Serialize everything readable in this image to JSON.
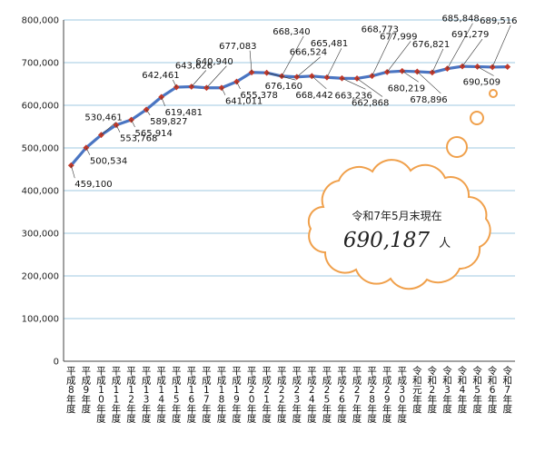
{
  "chart_data": {
    "type": "line",
    "title": "",
    "xlabel": "",
    "ylabel": "",
    "ylim": [
      0,
      800000
    ],
    "yticks": [
      "0",
      "100,000",
      "200,000",
      "300,000",
      "400,000",
      "500,000",
      "600,000",
      "700,000",
      "800,000"
    ],
    "grid": true,
    "categories": [
      "平成8年度",
      "平成9年度",
      "平成10年度",
      "平成11年度",
      "平成12年度",
      "平成13年度",
      "平成14年度",
      "平成15年度",
      "平成16年度",
      "平成17年度",
      "平成18年度",
      "平成19年度",
      "平成20年度",
      "平成21年度",
      "平成22年度",
      "平成23年度",
      "平成24年度",
      "平成25年度",
      "平成26年度",
      "平成27年度",
      "平成28年度",
      "平成29年度",
      "平成30年度",
      "令和元年度",
      "令和2年度",
      "令和3年度",
      "令和4年度",
      "令和5年度",
      "令和6年度",
      "令和7年度"
    ],
    "series": [
      {
        "values": [
          459100,
          500534,
          530461,
          553768,
          565914,
          589827,
          619481,
          642461,
          643626,
          640940,
          641011,
          655378,
          677083,
          676160,
          668340,
          666524,
          668442,
          665481,
          663236,
          662868,
          668773,
          677999,
          680219,
          678896,
          676821,
          685848,
          691279,
          690509,
          689516,
          690187
        ],
        "labels": [
          "459,100",
          "500,534",
          "530,461",
          "553,768",
          "565,914",
          "589,827",
          "619,481",
          "642,461",
          "643,626",
          "640,940",
          "641,011",
          "655,378",
          "677,083",
          "676,160",
          "668,340",
          "666,524",
          "668,442",
          "665,481",
          "663,236",
          "662,868",
          "668,773",
          "677,999",
          "680,219",
          "678,896",
          "676,821",
          "685,848",
          "691,279",
          "690,509",
          "689,516",
          ""
        ],
        "line_color": "#4a75c2",
        "marker_color": "#c0392b"
      }
    ],
    "annotation": {
      "caption": "令和7年5月末現在",
      "value": "690,187",
      "unit": "人",
      "cloud_color": "#f0a04b"
    }
  }
}
